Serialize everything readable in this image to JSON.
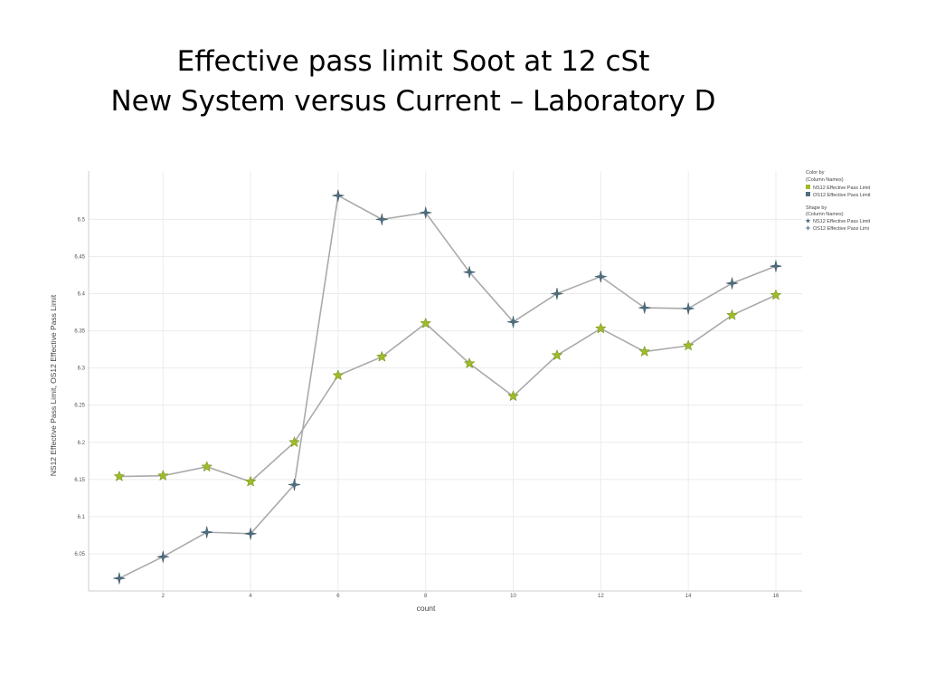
{
  "slide": {
    "title_line1": "Effective pass limit Soot at 12 cSt",
    "title_line2": "New System versus Current – Laboratory D"
  },
  "chart_data": {
    "type": "line",
    "title": "Effective pass limit Soot at 12 cSt New System versus Current – Laboratory D",
    "xlabel": "count",
    "ylabel": "NS12 Effective Pass Limit, OS12 Effective Pass Limit",
    "xlim": [
      0.3,
      16.6
    ],
    "ylim": [
      6.0,
      6.565
    ],
    "x_ticks": [
      2,
      4,
      6,
      8,
      10,
      12,
      14,
      16
    ],
    "y_ticks": [
      6.05,
      6.1,
      6.15,
      6.2,
      6.25,
      6.3,
      6.35,
      6.4,
      6.45,
      6.5
    ],
    "grid": true,
    "legend_position": "top-right",
    "x": [
      1,
      2,
      3,
      4,
      5,
      6,
      7,
      8,
      9,
      10,
      11,
      12,
      13,
      14,
      15,
      16
    ],
    "series": [
      {
        "name": "NS12 Effective Pass Limit",
        "marker": "star",
        "color": "#9dbb2a",
        "values": [
          6.154,
          6.155,
          6.167,
          6.147,
          6.2,
          6.29,
          6.315,
          6.36,
          6.306,
          6.262,
          6.317,
          6.353,
          6.322,
          6.33,
          6.371,
          6.398
        ]
      },
      {
        "name": "OS12 Effective Pass Limit",
        "marker": "cross",
        "color": "#4f6f80",
        "values": [
          6.017,
          6.046,
          6.079,
          6.077,
          6.143,
          6.532,
          6.5,
          6.509,
          6.429,
          6.362,
          6.4,
          6.423,
          6.381,
          6.38,
          6.414,
          6.437
        ]
      }
    ],
    "line_color": "#aaaaaa",
    "legend": {
      "color_title": "Color by",
      "color_subtitle": "(Column Names)",
      "color_items": [
        "NS12 Effective Pass Limit",
        "OS12 Effective Pass Limit"
      ],
      "shape_title": "Shape by",
      "shape_subtitle": "(Column Names)",
      "shape_items": [
        "NS12 Effective Pass Limit",
        "OS12 Effective Pass Limi"
      ]
    }
  }
}
